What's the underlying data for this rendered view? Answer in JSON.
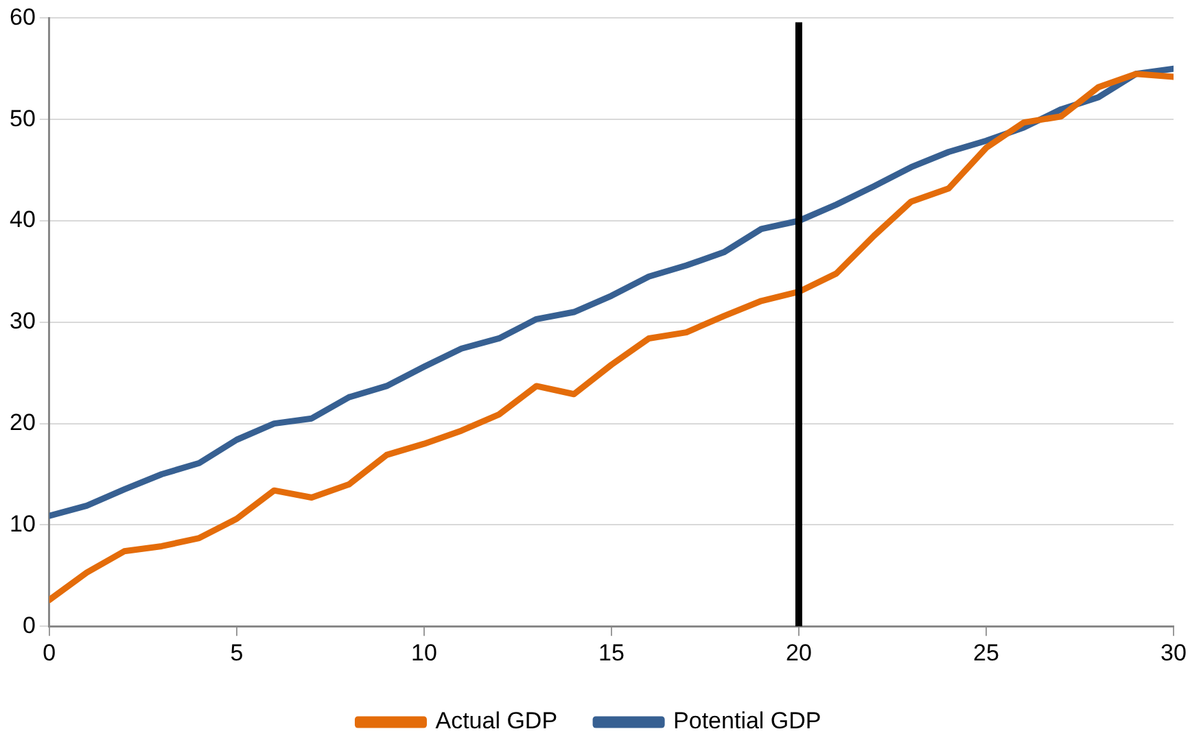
{
  "chart_data": {
    "type": "line",
    "x": [
      0,
      1,
      2,
      3,
      4,
      5,
      6,
      7,
      8,
      9,
      10,
      11,
      12,
      13,
      14,
      15,
      16,
      17,
      18,
      19,
      20,
      21,
      22,
      23,
      24,
      25,
      26,
      27,
      28,
      29,
      30
    ],
    "series": [
      {
        "name": "Actual GDP",
        "color": "#e46c0a",
        "values": [
          2.6,
          5.3,
          7.4,
          7.9,
          8.7,
          10.6,
          13.4,
          12.7,
          14,
          16.9,
          18,
          19.3,
          20.9,
          23.7,
          22.9,
          25.8,
          28.4,
          29,
          30.6,
          32.1,
          33,
          34.8,
          38.5,
          41.9,
          43.2,
          47.2,
          49.7,
          50.3,
          53.2,
          54.5,
          54.2
        ]
      },
      {
        "name": "Potential GDP",
        "color": "#376092",
        "values": [
          10.9,
          11.9,
          13.5,
          15,
          16.1,
          18.4,
          20,
          20.5,
          22.6,
          23.7,
          25.6,
          27.4,
          28.4,
          30.3,
          31,
          32.6,
          34.5,
          35.6,
          36.9,
          39.2,
          40,
          41.6,
          43.4,
          45.3,
          46.8,
          47.9,
          49.2,
          51,
          52.2,
          54.5,
          55
        ]
      }
    ],
    "xlim": [
      0,
      30
    ],
    "xticks": [
      0,
      5,
      10,
      15,
      20,
      25,
      30
    ],
    "ylim": [
      0,
      60
    ],
    "yticks": [
      0,
      10,
      20,
      30,
      40,
      50,
      60
    ],
    "ref_lines": [
      {
        "axis": "x",
        "value": 20,
        "color": "#000000"
      }
    ],
    "grid": "y",
    "legend": "bottom",
    "marker": "none",
    "line_style": "solid"
  }
}
